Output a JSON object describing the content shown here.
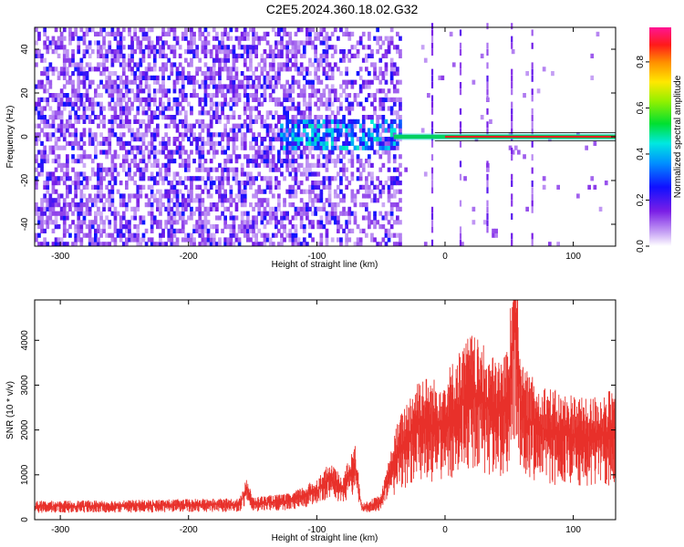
{
  "title": "C2E5.2024.360.18.02.G32",
  "colors": {
    "snr_line": "#e8302a",
    "trace_core": "#e02020",
    "trace_halo": "#00d060",
    "frame": "#000000"
  },
  "chart_data": [
    {
      "type": "heatmap",
      "xlabel": "Height of straight line (km)",
      "ylabel": "Frequency (Hz)",
      "xlim": [
        -320,
        133
      ],
      "ylim": [
        -50,
        50
      ],
      "xticks": [
        -300,
        -200,
        -100,
        0,
        100
      ],
      "yticks": [
        -40,
        -20,
        0,
        20,
        40
      ],
      "colorbar": {
        "label": "Normalized spectral amplitude",
        "range": [
          0,
          0.95
        ],
        "ticks": [
          0,
          0.2,
          0.4,
          0.6,
          0.8
        ],
        "colormap": "rainbow (white-purple-blue-cyan-green-yellow-red-magenta)"
      },
      "features": {
        "noise_region_x": [
          -320,
          -35
        ],
        "carrier_frequency_hz": 0,
        "carrier_start_x": -40,
        "vertical_artifacts_x": [
          -10,
          12,
          33,
          52,
          68
        ]
      }
    },
    {
      "type": "line",
      "series": [
        {
          "values_description": "SNR rises from ~300 below -160 km to ~2000 above 0 km",
          "x": [
            -320,
            -250,
            -200,
            -160,
            -155,
            -150,
            -120,
            -100,
            -90,
            -80,
            -70,
            -65,
            -50,
            -40,
            -30,
            -20,
            -10,
            0,
            10,
            20,
            30,
            40,
            50,
            54,
            60,
            70,
            80,
            90,
            100,
            110,
            120,
            133
          ],
          "y": [
            300,
            310,
            330,
            340,
            700,
            360,
            420,
            650,
            900,
            700,
            1200,
            250,
            400,
            1300,
            1800,
            2200,
            2100,
            2200,
            2500,
            2800,
            2600,
            2400,
            2600,
            4850,
            2300,
            2100,
            2000,
            1900,
            1900,
            1800,
            1900,
            1950
          ]
        }
      ],
      "xlabel": "Height of straight line (km)",
      "ylabel": "SNR (10 * v/v)",
      "xlim": [
        -320,
        133
      ],
      "ylim": [
        0,
        4900
      ],
      "xticks": [
        -300,
        -200,
        -100,
        0,
        100
      ],
      "yticks": [
        0,
        1000,
        2000,
        3000,
        4000
      ]
    }
  ]
}
